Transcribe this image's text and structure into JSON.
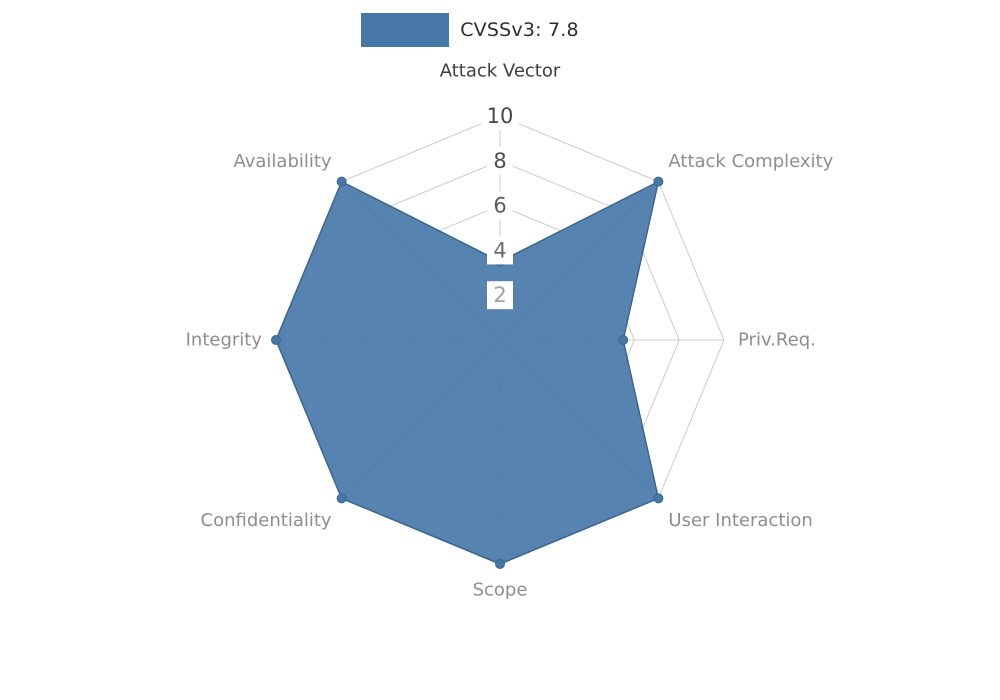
{
  "legend": {
    "label": "CVSSv3: 7.8",
    "color": "#4878a8"
  },
  "chart_data": {
    "type": "radar",
    "title": "CVSSv3: 7.8",
    "categories": [
      "Attack Vector",
      "Attack Complexity",
      "Priv.Req.",
      "User Interaction",
      "Scope",
      "Confidentiality",
      "Integrity",
      "Availability"
    ],
    "values": [
      3.5,
      10,
      5.5,
      10,
      10,
      10,
      10,
      10
    ],
    "max": 10,
    "ticks": [
      2,
      4,
      6,
      8,
      10
    ],
    "tick_colors": [
      "#a0a0a0",
      "#6e6e6e",
      "#5a5a5a",
      "#4f4f4f",
      "#474747"
    ],
    "category_colors": [
      "#3d3d3d",
      "#8e8e8e",
      "#8e8e8e",
      "#8e8e8e",
      "#8e8e8e",
      "#8e8e8e",
      "#8e8e8e",
      "#8e8e8e"
    ],
    "fill_color": "#4878a8",
    "stroke_color": "#3a6690",
    "grid_color": "#cccccc",
    "background": "#ffffff",
    "axis_order": "clockwise-from-top",
    "legend_position": "top-center",
    "ylim": [
      0,
      10
    ]
  }
}
